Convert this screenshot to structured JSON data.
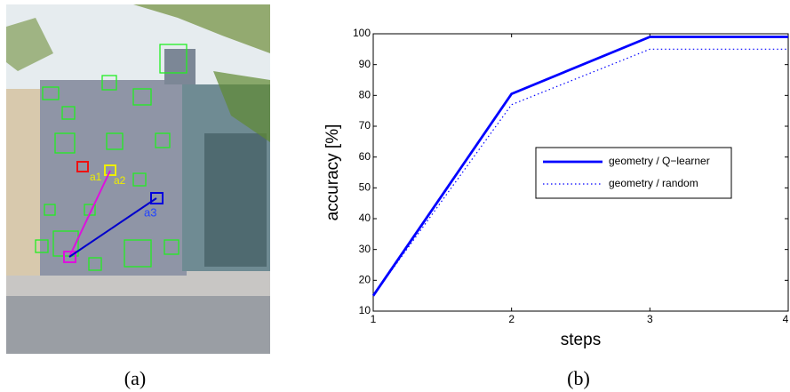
{
  "figure": {
    "captions": [
      "(a)",
      "(b)"
    ],
    "image_labels": [
      "a1",
      "a2",
      "a3"
    ]
  },
  "chart_data": {
    "type": "line",
    "xlabel": "steps",
    "ylabel": "accuracy [%]",
    "x": [
      1,
      2,
      3,
      4
    ],
    "series": [
      {
        "name": "geometry / Q−learner",
        "color": "#0000ff",
        "style": "solid",
        "values": [
          15,
          80.5,
          99,
          99
        ]
      },
      {
        "name": "geometry / random",
        "color": "#0000ff",
        "style": "dotted",
        "values": [
          15,
          77,
          95,
          95
        ]
      }
    ],
    "xlim": [
      1,
      4
    ],
    "xticks": [
      1,
      2,
      3,
      4
    ],
    "ylim": [
      10,
      100
    ],
    "yticks": [
      10,
      20,
      30,
      40,
      50,
      60,
      70,
      80,
      90,
      100
    ],
    "legend": "right"
  }
}
